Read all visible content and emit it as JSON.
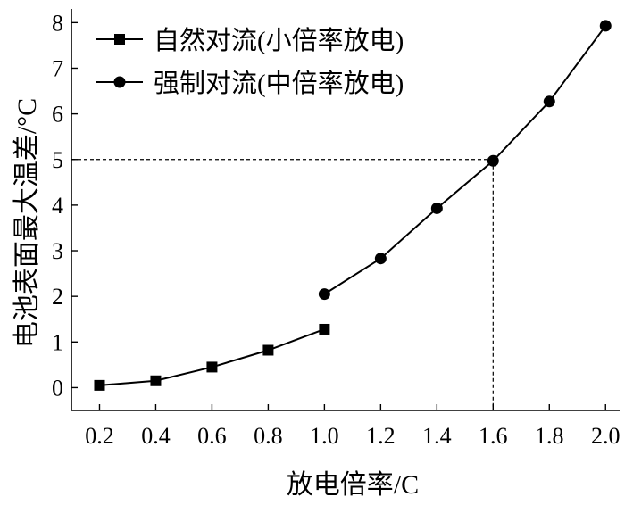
{
  "chart_data": {
    "type": "line",
    "xlabel": "放电倍率/C",
    "ylabel": "电池表面最大温差/°C",
    "xlim": [
      0.1,
      2.05
    ],
    "ylim": [
      -0.5,
      8.3
    ],
    "x_ticks": [
      "0.2",
      "0.4",
      "0.6",
      "0.8",
      "1.0",
      "1.2",
      "1.4",
      "1.6",
      "1.8",
      "2.0"
    ],
    "y_ticks": [
      "0",
      "1",
      "2",
      "3",
      "4",
      "5",
      "6",
      "7",
      "8"
    ],
    "legend_position": "top-left",
    "series": [
      {
        "name": "自然对流(小倍率放电)",
        "marker": "square",
        "x": [
          0.2,
          0.4,
          0.6,
          0.8,
          1.0
        ],
        "y": [
          0.05,
          0.15,
          0.45,
          0.82,
          1.28
        ]
      },
      {
        "name": "强制对流(中倍率放电)",
        "marker": "circle",
        "x": [
          1.0,
          1.2,
          1.4,
          1.6,
          1.8,
          2.0
        ],
        "y": [
          2.05,
          2.83,
          3.93,
          4.97,
          6.27,
          7.93
        ]
      }
    ],
    "reference_point": {
      "x": 1.6,
      "y": 5
    }
  }
}
